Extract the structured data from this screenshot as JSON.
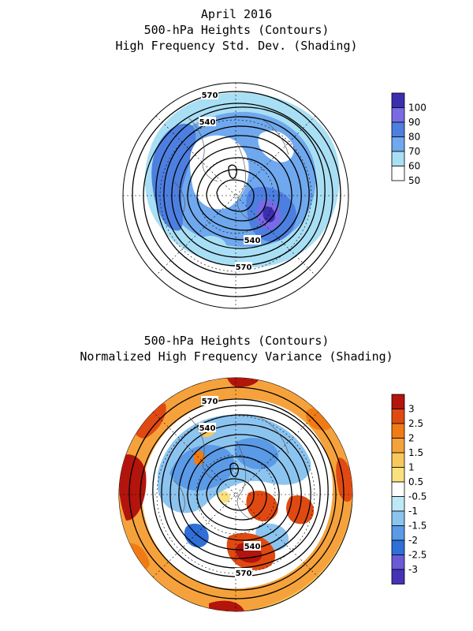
{
  "top_panel": {
    "title_lines": [
      "April 2016",
      "500-hPa Heights (Contours)",
      "High Frequency Std. Dev. (Shading)"
    ],
    "contour_labels": [
      "570",
      "540",
      "540",
      "570"
    ],
    "colorbar": {
      "ticks": [
        "100",
        "90",
        "80",
        "70",
        "60",
        "50"
      ],
      "colors": [
        "#3b2fb0",
        "#7a6ae6",
        "#4d7fe0",
        "#6fa8ee",
        "#a9dff4",
        "#ffffff"
      ]
    }
  },
  "bottom_panel": {
    "title_lines": [
      "500-hPa Heights (Contours)",
      "Normalized High Frequency Variance (Shading)"
    ],
    "contour_labels": [
      "570",
      "540",
      "540",
      "570"
    ],
    "colorbar": {
      "ticks": [
        "3",
        "2.5",
        "2",
        "1.5",
        "1",
        "0.5",
        "-0.5",
        "-1",
        "-1.5",
        "-2",
        "-2.5",
        "-3"
      ],
      "colors": [
        "#b3140c",
        "#e04a12",
        "#f07b14",
        "#f6a23c",
        "#f8c85c",
        "#fbe07e",
        "#ffffff",
        "#bde9f7",
        "#8cc4f0",
        "#5a9ae6",
        "#2f6fd8",
        "#6a5ad8",
        "#4433b8"
      ]
    }
  }
}
